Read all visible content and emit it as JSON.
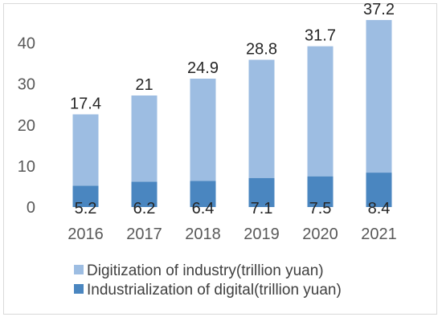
{
  "chart_data": {
    "type": "bar",
    "stacked": true,
    "categories": [
      "2016",
      "2017",
      "2018",
      "2019",
      "2020",
      "2021"
    ],
    "series": [
      {
        "name": "Industrialization of digital(trillion yuan)",
        "values": [
          5.2,
          6.2,
          6.4,
          7.1,
          7.5,
          8.4
        ],
        "color": "#4a86c0"
      },
      {
        "name": "Digitization of industry(trillion yuan)",
        "values": [
          17.4,
          21,
          24.9,
          28.8,
          31.7,
          37.2
        ],
        "color": "#9dbde2"
      }
    ],
    "y_ticks": [
      "0",
      "10",
      "20",
      "30",
      "40"
    ],
    "ylim": [
      0,
      45
    ],
    "grid": false,
    "legend_position": "bottom"
  }
}
